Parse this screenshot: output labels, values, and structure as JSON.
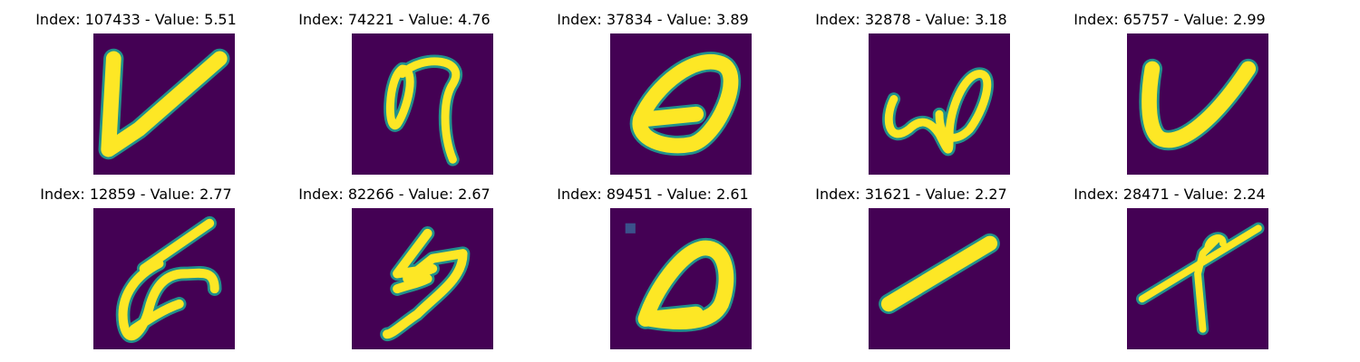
{
  "grid": {
    "panels": [
      {
        "title": "Index: 107433 - Value: 5.51",
        "glyph": "v-shape",
        "colors": {
          "background": "#440154",
          "stroke": "#fde725",
          "edge": "#21918c"
        }
      },
      {
        "title": "Index: 74221 - Value: 4.76",
        "glyph": "loop-nine"
      },
      {
        "title": "Index: 37834 - Value: 3.89",
        "glyph": "oval-zero"
      },
      {
        "title": "Index: 32878 - Value: 3.18",
        "glyph": "omega-w"
      },
      {
        "title": "Index: 65757 - Value: 2.99",
        "glyph": "v-shape"
      },
      {
        "title": "Index: 12859 - Value: 2.77",
        "glyph": "loop-scrawl"
      },
      {
        "title": "Index: 82266 - Value: 2.67",
        "glyph": "s-five"
      },
      {
        "title": "Index: 89451 - Value: 2.61",
        "glyph": "oval-zero"
      },
      {
        "title": "Index: 31621 - Value: 2.27",
        "glyph": "diagonal-bar"
      },
      {
        "title": "Index: 28471 - Value: 2.24",
        "glyph": "arrow-cross"
      }
    ]
  }
}
